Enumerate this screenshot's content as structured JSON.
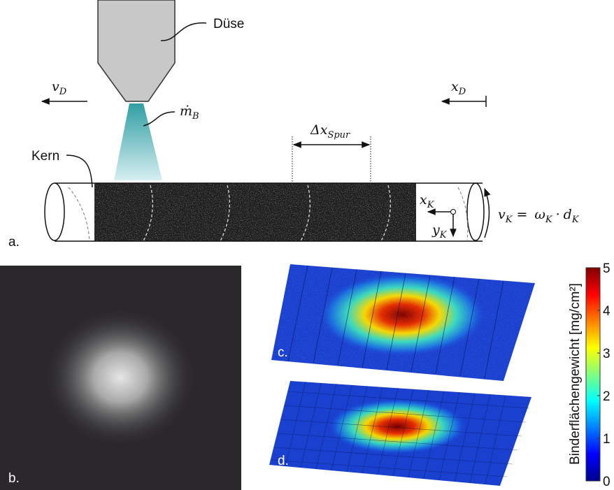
{
  "panel_a": {
    "label": "a.",
    "nozzle": "Düse",
    "core": "Kern",
    "v_D": {
      "base": "v",
      "sub": "D"
    },
    "x_D": {
      "base": "x",
      "sub": "D"
    },
    "m_B": {
      "base": "ṁ",
      "sub": "B"
    },
    "delta_x": {
      "base": "Δx",
      "sub": "Spur"
    },
    "x_K": {
      "base": "x",
      "sub": "K"
    },
    "y_K": {
      "base": "y",
      "sub": "K"
    },
    "equation": {
      "lhs": {
        "base": "v",
        "sub": "K"
      },
      "eq": "=",
      "t1": {
        "base": "ω",
        "sub": "K"
      },
      "op": "·",
      "t2": {
        "base": "d",
        "sub": "K"
      }
    }
  },
  "panel_b": {
    "label": "b."
  },
  "panel_c": {
    "label": "c."
  },
  "panel_d": {
    "label": "d."
  },
  "colorbar": {
    "label": "Binderflächengewicht [mg/cm²]",
    "lim": [
      0,
      5
    ],
    "ticks": [
      0,
      1,
      2,
      3,
      4,
      5
    ]
  }
}
